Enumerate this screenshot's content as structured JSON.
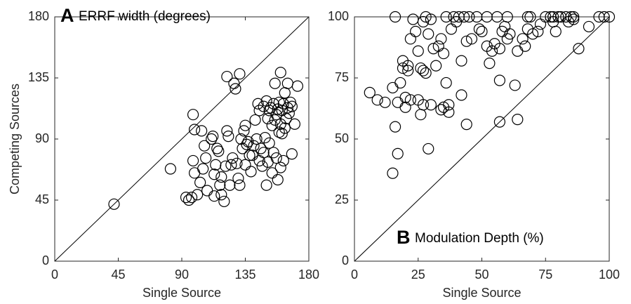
{
  "chart_data": [
    {
      "type": "scatter",
      "panel_label": "A",
      "title": "ERRF width (degrees)",
      "x_label": "Single Source",
      "y_label": "Competing Sources",
      "color": "#000000",
      "xlim": [
        0,
        180
      ],
      "ylim": [
        0,
        180
      ],
      "xticks": [
        0,
        45,
        90,
        135,
        180
      ],
      "yticks": [
        0,
        45,
        90,
        135,
        180
      ],
      "x": [
        42,
        82,
        93,
        95,
        97,
        98,
        99,
        98,
        99,
        101,
        103,
        104,
        105,
        106,
        107,
        108,
        111,
        112,
        113,
        113,
        114,
        115,
        116,
        117,
        118,
        118,
        120,
        121,
        122,
        122,
        123,
        124,
        125,
        126,
        127,
        128,
        129,
        130,
        131,
        131,
        132,
        133,
        134,
        135,
        135,
        136,
        137,
        138,
        139,
        140,
        141,
        142,
        143,
        144,
        145,
        145,
        146,
        147,
        148,
        148,
        149,
        150,
        150,
        151,
        151,
        152,
        152,
        153,
        154,
        154,
        155,
        155,
        156,
        156,
        157,
        157,
        158,
        158,
        159,
        159,
        160,
        160,
        160,
        161,
        161,
        162,
        162,
        163,
        163,
        164,
        165,
        165,
        166,
        167,
        168,
        168,
        170,
        172
      ],
      "y": [
        42,
        68,
        47,
        45,
        47,
        108,
        97,
        74,
        65,
        49,
        58,
        96,
        68,
        85,
        76,
        52,
        90,
        92,
        64,
        48,
        71,
        83,
        81,
        56,
        49,
        62,
        44,
        70,
        136,
        96,
        92,
        56,
        71,
        76,
        131,
        127,
        72,
        61,
        56,
        138,
        90,
        83,
        96,
        100,
        71,
        86,
        88,
        78,
        66,
        78,
        85,
        104,
        90,
        116,
        111,
        74,
        83,
        70,
        114,
        80,
        91,
        118,
        56,
        105,
        73,
        87,
        111,
        113,
        100,
        65,
        116,
        80,
        104,
        131,
        108,
        76,
        112,
        60,
        117,
        95,
        139,
        101,
        69,
        94,
        111,
        116,
        74,
        124,
        98,
        105,
        113,
        131,
        109,
        117,
        79,
        114,
        101,
        129
      ]
    },
    {
      "type": "scatter",
      "panel_label": "B",
      "title": "Modulation Depth (%)",
      "x_label": "Single Source",
      "color": "#000000",
      "xlim": [
        0,
        100
      ],
      "ylim": [
        0,
        100
      ],
      "xticks": [
        0,
        25,
        50,
        75,
        100
      ],
      "yticks": [
        0,
        25,
        50,
        75,
        100
      ],
      "x": [
        6,
        9,
        12,
        15,
        15,
        16,
        16,
        17,
        17,
        18,
        19,
        19,
        20,
        20,
        21,
        21,
        22,
        22,
        23,
        24,
        25,
        25,
        26,
        26,
        27,
        27,
        27,
        28,
        28,
        29,
        29,
        30,
        30,
        31,
        32,
        33,
        34,
        34,
        35,
        35,
        36,
        36,
        37,
        37,
        38,
        39,
        40,
        41,
        42,
        42,
        43,
        44,
        44,
        45,
        46,
        48,
        49,
        50,
        52,
        52,
        53,
        54,
        55,
        56,
        57,
        57,
        57,
        58,
        59,
        60,
        60,
        61,
        63,
        64,
        64,
        66,
        67,
        68,
        68,
        69,
        70,
        72,
        73,
        75,
        77,
        78,
        78,
        79,
        80,
        81,
        83,
        84,
        85,
        86,
        86,
        88,
        92,
        96,
        98,
        100
      ],
      "y": [
        69,
        66,
        65,
        36,
        71,
        100,
        55,
        44,
        65,
        73,
        82,
        79,
        67,
        63,
        80,
        78,
        91,
        66,
        99,
        94,
        86,
        66,
        79,
        60,
        78,
        64,
        98,
        100,
        77,
        93,
        46,
        64,
        99,
        87,
        80,
        88,
        62,
        91,
        63,
        85,
        73,
        100,
        61,
        64,
        95,
        100,
        98,
        100,
        68,
        82,
        100,
        90,
        56,
        100,
        91,
        100,
        95,
        94,
        100,
        88,
        81,
        86,
        89,
        100,
        57,
        74,
        87,
        94,
        96,
        100,
        91,
        93,
        72,
        86,
        58,
        91,
        88,
        100,
        95,
        100,
        93,
        94,
        97,
        100,
        100,
        100,
        98,
        94,
        100,
        100,
        100,
        98,
        100,
        100,
        99,
        87,
        96,
        100,
        100,
        100
      ]
    }
  ]
}
